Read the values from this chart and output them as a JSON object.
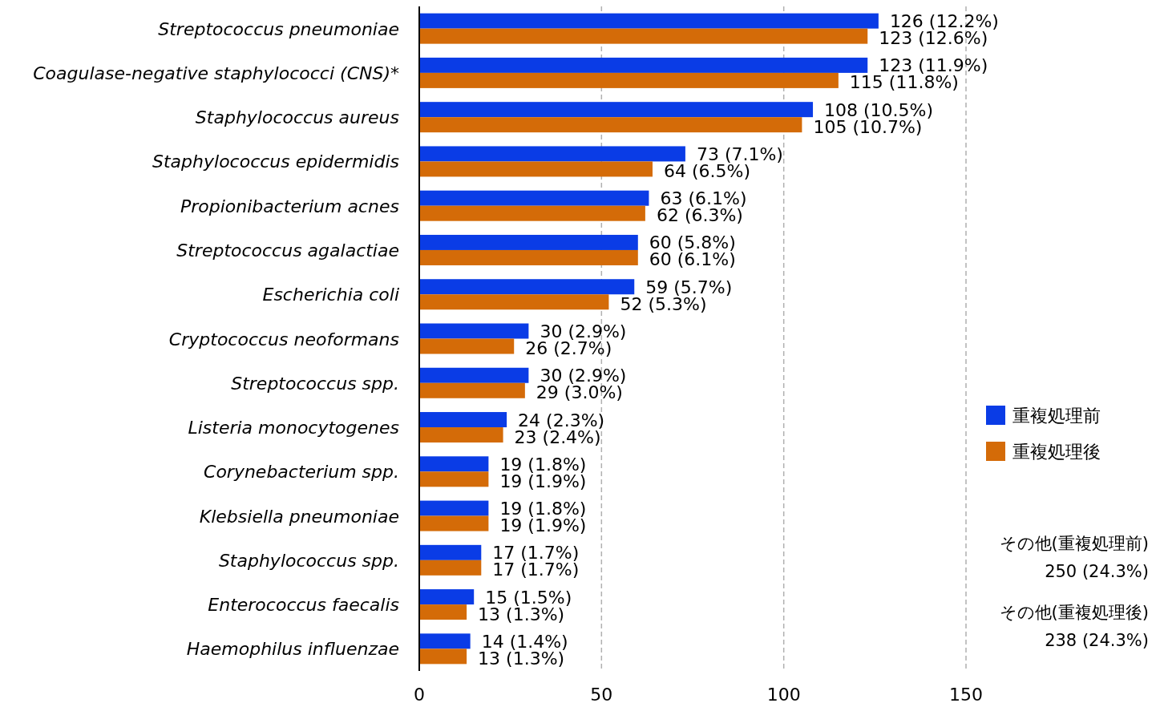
{
  "chart_data": {
    "type": "bar",
    "orientation": "horizontal",
    "categories": [
      "Streptococcus pneumoniae",
      "Coagulase-negative staphylococci (CNS)*",
      "Staphylococcus aureus",
      "Staphylococcus epidermidis",
      "Propionibacterium acnes",
      "Streptococcus agalactiae",
      "Escherichia coli",
      "Cryptococcus neoformans",
      "Streptococcus spp.",
      "Listeria monocytogenes",
      "Corynebacterium spp.",
      "Klebsiella pneumoniae",
      "Staphylococcus spp.",
      "Enterococcus faecalis",
      "Haemophilus influenzae"
    ],
    "series": [
      {
        "name": "重複処理前",
        "color": "#0a3ce6",
        "values": [
          126,
          123,
          108,
          73,
          63,
          60,
          59,
          30,
          30,
          24,
          19,
          19,
          17,
          15,
          14
        ],
        "value_labels": [
          "126 (12.2%)",
          "123 (11.9%)",
          "108 (10.5%)",
          "73 (7.1%)",
          "63 (6.1%)",
          "60 (5.8%)",
          "59 (5.7%)",
          "30 (2.9%)",
          "30 (2.9%)",
          "24 (2.3%)",
          "19 (1.8%)",
          "19 (1.8%)",
          "17 (1.7%)",
          "15 (1.5%)",
          "14 (1.4%)"
        ]
      },
      {
        "name": "重複処理後",
        "color": "#d46b08",
        "values": [
          123,
          115,
          105,
          64,
          62,
          60,
          52,
          26,
          29,
          23,
          19,
          19,
          17,
          13,
          13
        ],
        "value_labels": [
          "123 (12.6%)",
          "115 (11.8%)",
          "105 (10.7%)",
          "64 (6.5%)",
          "62 (6.3%)",
          "60 (6.1%)",
          "52 (5.3%)",
          "26 (2.7%)",
          "29 (3.0%)",
          "23 (2.4%)",
          "19 (1.9%)",
          "19 (1.9%)",
          "17 (1.7%)",
          "13 (1.3%)",
          "13 (1.3%)"
        ]
      }
    ],
    "xlim": [
      0,
      150
    ],
    "xticks": [
      0,
      50,
      100,
      150
    ],
    "grid": "x",
    "legend": "right",
    "annotations": [
      "その他(重複処理前)",
      "250 (24.3%)",
      "その他(重複処理後)",
      "238 (24.3%)"
    ]
  }
}
